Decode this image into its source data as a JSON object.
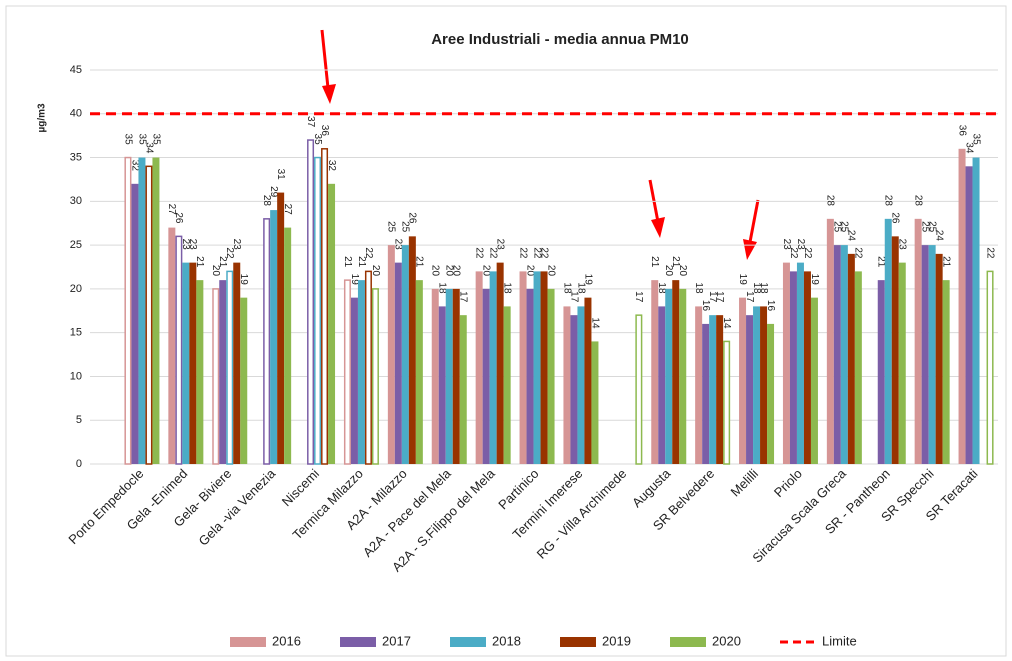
{
  "chart_data": {
    "type": "bar",
    "title": "Aree Industriali - media annua PM10",
    "y_label": "µg/m3",
    "categories": [
      "Porto Empedocle",
      "Gela -Enimed",
      "Gela- Biviere",
      "Gela -via Venezia",
      "Niscemi",
      "Termica Milazzo",
      "A2A - Milazzo",
      "A2A - Pace del Mela",
      "A2A - S.Filippo del Mela",
      "Partinico",
      "Termini Imerese",
      "RG - Villa Archimede",
      "Augusta",
      "SR Belvedere",
      "Melilli",
      "Priolo",
      "Siracusa Scala Greca",
      "SR - Pantheon",
      "SR Specchi",
      "SR Teracati"
    ],
    "series": [
      {
        "name": "2016",
        "color": "#d69595",
        "values": [
          35,
          27,
          20,
          null,
          null,
          21,
          25,
          20,
          22,
          22,
          18,
          null,
          21,
          18,
          19,
          23,
          28,
          null,
          28,
          36
        ],
        "hollow": [
          true,
          false,
          true,
          false,
          false,
          true,
          false,
          false,
          false,
          false,
          false,
          false,
          false,
          false,
          false,
          false,
          false,
          false,
          false,
          false
        ]
      },
      {
        "name": "2017",
        "color": "#7b5ea7",
        "values": [
          32,
          26,
          21,
          28,
          37,
          19,
          23,
          18,
          20,
          20,
          17,
          null,
          18,
          16,
          17,
          22,
          25,
          21,
          25,
          34
        ],
        "hollow": [
          false,
          true,
          false,
          true,
          true,
          false,
          false,
          false,
          false,
          false,
          false,
          false,
          false,
          false,
          false,
          false,
          false,
          false,
          false,
          false
        ]
      },
      {
        "name": "2018",
        "color": "#4bacc6",
        "values": [
          35,
          23,
          22,
          29,
          35,
          21,
          25,
          20,
          22,
          22,
          18,
          null,
          20,
          17,
          18,
          23,
          25,
          28,
          25,
          35
        ],
        "hollow": [
          false,
          false,
          true,
          false,
          true,
          false,
          false,
          false,
          false,
          false,
          false,
          false,
          false,
          false,
          false,
          false,
          false,
          false,
          false,
          false
        ]
      },
      {
        "name": "2019",
        "color": "#993300",
        "values": [
          34,
          23,
          23,
          31,
          36,
          22,
          26,
          20,
          23,
          22,
          19,
          null,
          21,
          17,
          18,
          22,
          24,
          26,
          24,
          null
        ],
        "hollow": [
          true,
          false,
          false,
          false,
          true,
          true,
          false,
          false,
          false,
          false,
          false,
          false,
          false,
          false,
          false,
          false,
          false,
          false,
          false,
          false
        ]
      },
      {
        "name": "2020",
        "color": "#8db94f",
        "values": [
          35,
          21,
          19,
          27,
          32,
          20,
          21,
          17,
          18,
          20,
          14,
          17,
          20,
          14,
          16,
          19,
          22,
          23,
          21,
          22
        ],
        "hollow": [
          false,
          false,
          false,
          false,
          false,
          true,
          false,
          false,
          false,
          false,
          false,
          true,
          false,
          true,
          false,
          false,
          false,
          false,
          false,
          true
        ]
      }
    ],
    "limit": {
      "name": "Limite",
      "value": 40,
      "color": "#ff0000"
    },
    "ylim": [
      0,
      45
    ],
    "yticks": [
      0,
      5,
      10,
      15,
      20,
      25,
      30,
      35,
      40,
      45
    ],
    "grid": true,
    "legend": "bottom"
  }
}
